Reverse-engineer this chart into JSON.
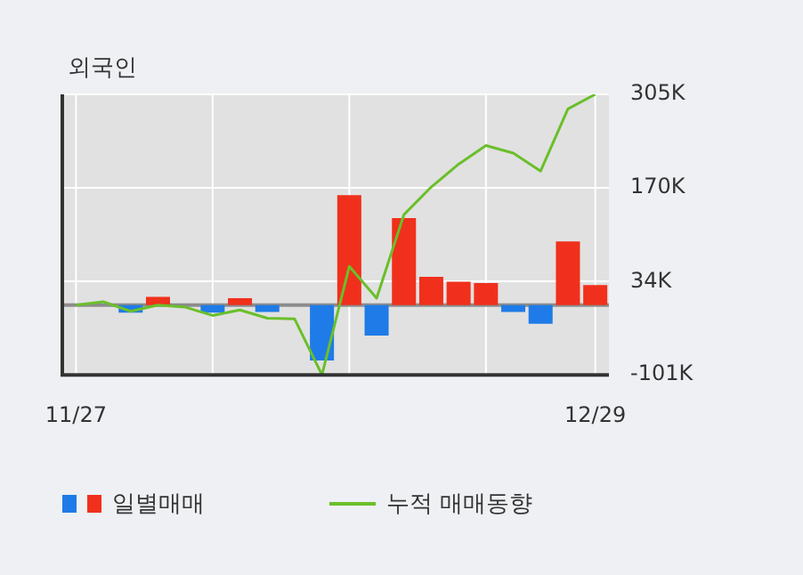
{
  "chart_data": {
    "type": "bar",
    "title": "외국인",
    "categories": [
      "11/27",
      null,
      null,
      null,
      null,
      null,
      null,
      null,
      null,
      null,
      null,
      null,
      null,
      null,
      null,
      null,
      null,
      null,
      null,
      "12/29"
    ],
    "series": [
      {
        "name": "일별매매",
        "colors": [
          "#f0301c",
          "#f0301c",
          "#1e7be8",
          "#f0301c",
          "#f0301c",
          "#1e7be8",
          "#f0301c",
          "#1e7be8",
          "#f0301c",
          "#1e7be8",
          "#f0301c",
          "#1e7be8",
          "#f0301c",
          "#f0301c",
          "#f0301c",
          "#f0301c",
          "#1e7be8",
          "#1e7be8",
          "#f0301c",
          "#f0301c"
        ],
        "values": [
          0,
          null,
          -11000,
          12000,
          0,
          -11000,
          10000,
          -10000,
          0,
          -80000,
          159000,
          -44000,
          126000,
          41000,
          34000,
          32000,
          -10000,
          -27000,
          92000,
          29000
        ]
      },
      {
        "name": "누적 매매동향",
        "type": "line",
        "color": "#6abf2a",
        "values": [
          0,
          5000,
          -9000,
          0,
          -3000,
          -15000,
          -7000,
          -19000,
          -20000,
          -101000,
          56000,
          10000,
          131000,
          171000,
          204000,
          231000,
          220000,
          194000,
          284000,
          305000
        ]
      }
    ],
    "ylim": [
      -101000,
      305000
    ],
    "yticks": [
      {
        "value": -101000,
        "label": "-101K"
      },
      {
        "value": 34000,
        "label": "34K"
      },
      {
        "value": 170000,
        "label": "170K"
      },
      {
        "value": 305000,
        "label": "305K"
      }
    ],
    "ref_lines": [
      {
        "axis": "y",
        "value": 0,
        "color": "#8c8c8c"
      }
    ],
    "grid": true,
    "legend": "bottom",
    "marker": "none",
    "line_style": "solid"
  }
}
